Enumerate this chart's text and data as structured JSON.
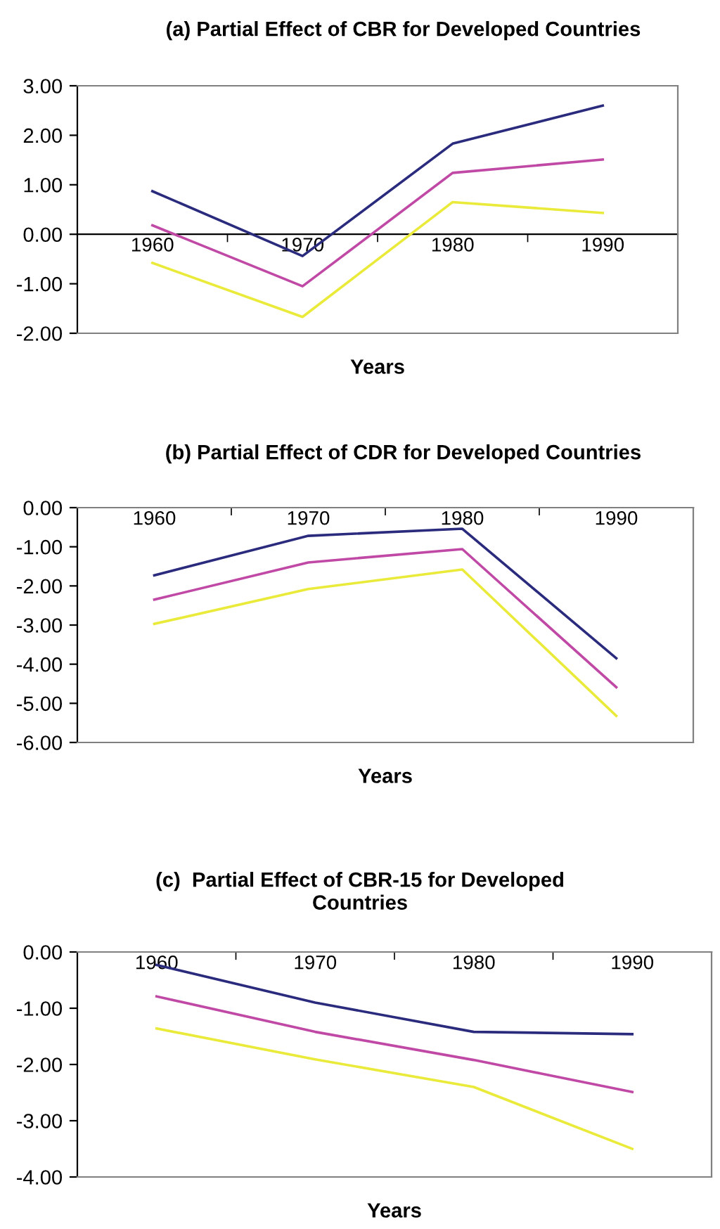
{
  "chart_data": [
    {
      "type": "line",
      "title": "(a) Partial Effect of CBR for Developed Countries",
      "xlabel": "Years",
      "categories": [
        "1960",
        "1970",
        "1980",
        "1990"
      ],
      "series": [
        {
          "color": "#2b2b7e",
          "values": [
            0.87,
            -0.44,
            1.83,
            2.6
          ]
        },
        {
          "color": "#c049a6",
          "values": [
            0.18,
            -1.05,
            1.24,
            1.51
          ]
        },
        {
          "color": "#eaea3a",
          "values": [
            -0.58,
            -1.67,
            0.65,
            0.43
          ]
        }
      ],
      "ylim": [
        -2,
        3
      ],
      "yticks": [
        {
          "value": -2,
          "label": "-2.00"
        },
        {
          "value": -1,
          "label": "-1.00"
        },
        {
          "value": 0,
          "label": "0.00"
        },
        {
          "value": 1,
          "label": "1.00"
        },
        {
          "value": 2,
          "label": "2.00"
        },
        {
          "value": 3,
          "label": "3.00"
        }
      ],
      "grid": false
    },
    {
      "type": "line",
      "title": "(b) Partial Effect of CDR for Developed Countries",
      "xlabel": "Years",
      "categories": [
        "1960",
        "1970",
        "1980",
        "1990"
      ],
      "series": [
        {
          "color": "#2b2b7e",
          "values": [
            -1.73,
            -0.72,
            -0.54,
            -3.85
          ]
        },
        {
          "color": "#c049a6",
          "values": [
            -2.35,
            -1.4,
            -1.06,
            -4.59
          ]
        },
        {
          "color": "#eaea3a",
          "values": [
            -2.97,
            -2.08,
            -1.58,
            -5.32
          ]
        }
      ],
      "ylim": [
        -6,
        0
      ],
      "yticks": [
        {
          "value": -6,
          "label": "-6.00"
        },
        {
          "value": -5,
          "label": "-5.00"
        },
        {
          "value": -4,
          "label": "-4.00"
        },
        {
          "value": -3,
          "label": "-3.00"
        },
        {
          "value": -2,
          "label": "-2.00"
        },
        {
          "value": -1,
          "label": "-1.00"
        },
        {
          "value": 0,
          "label": "0.00"
        }
      ],
      "grid": false
    },
    {
      "type": "line",
      "title": "(c)  Partial Effect of CBR-15 for Developed\nCountries",
      "xlabel": "Years",
      "categories": [
        "1960",
        "1970",
        "1980",
        "1990"
      ],
      "series": [
        {
          "color": "#2b2b7e",
          "values": [
            -0.23,
            -0.9,
            -1.42,
            -1.46
          ]
        },
        {
          "color": "#c049a6",
          "values": [
            -0.79,
            -1.42,
            -1.92,
            -2.49
          ]
        },
        {
          "color": "#eaea3a",
          "values": [
            -1.36,
            -1.91,
            -2.4,
            -3.5
          ]
        }
      ],
      "ylim": [
        -4,
        0
      ],
      "yticks": [
        {
          "value": -4,
          "label": "-4.00"
        },
        {
          "value": -3,
          "label": "-3.00"
        },
        {
          "value": -2,
          "label": "-2.00"
        },
        {
          "value": -1,
          "label": "-1.00"
        },
        {
          "value": 0,
          "label": "0.00"
        }
      ],
      "grid": false
    }
  ]
}
